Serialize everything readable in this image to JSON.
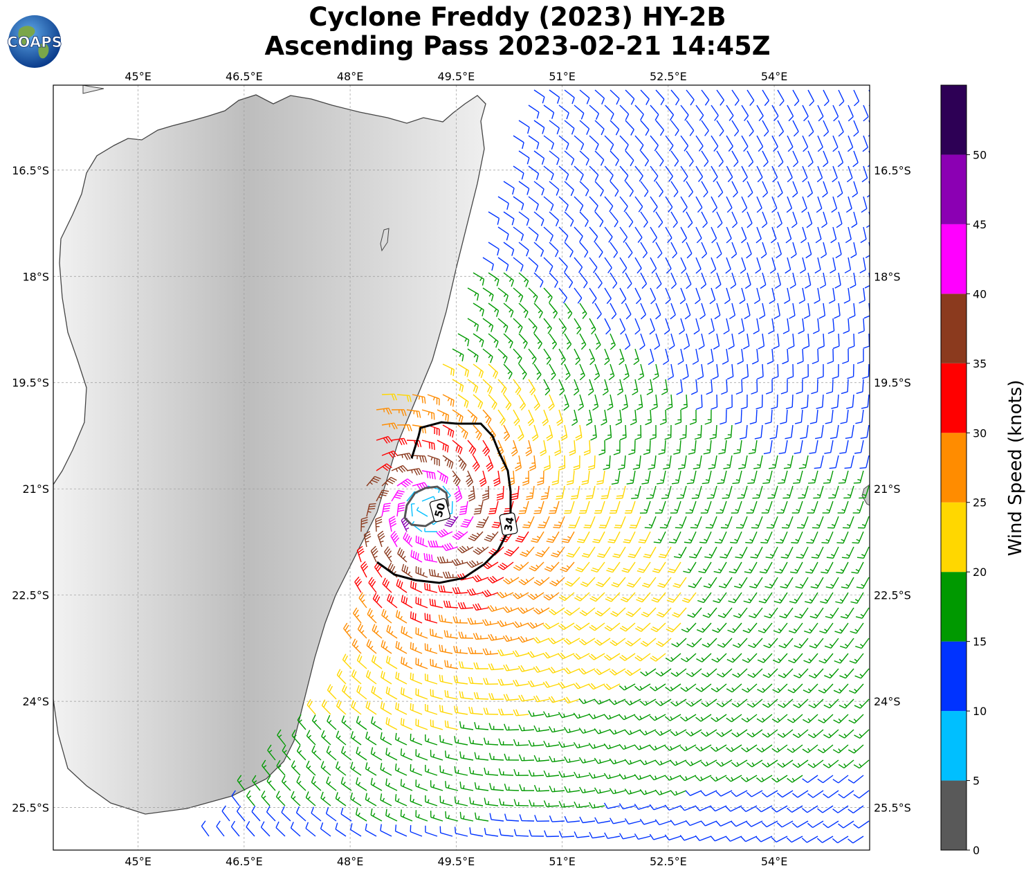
{
  "title": {
    "line1": "Cyclone Freddy (2023) HY-2B",
    "line2": "Ascending Pass 2023-02-21 14:45Z"
  },
  "logo": {
    "text": "COAPS",
    "icon": "globe-logo"
  },
  "map": {
    "lon_range": [
      43.8,
      55.35
    ],
    "lat_range": [
      -26.1,
      -15.3
    ],
    "lon_ticks": [
      "45°E",
      "46.5°E",
      "48°E",
      "49.5°E",
      "51°E",
      "52.5°E",
      "54°E"
    ],
    "lon_tick_values": [
      45,
      46.5,
      48,
      49.5,
      51,
      52.5,
      54
    ],
    "lat_ticks": [
      "16.5°S",
      "18°S",
      "19.5°S",
      "21°S",
      "22.5°S",
      "24°S",
      "25.5°S"
    ],
    "lat_tick_values": [
      -16.5,
      -18,
      -19.5,
      -21,
      -22.5,
      -24,
      -25.5
    ],
    "gridlines": true,
    "land_shading": "grayscale topography",
    "coastline_color": "#444444",
    "contours": [
      {
        "label": "34",
        "units": "knots"
      },
      {
        "label": "50",
        "units": "knots"
      }
    ]
  },
  "colorbar": {
    "title": "Wind Speed (knots)",
    "tick_labels": [
      "0",
      "5",
      "10",
      "15",
      "20",
      "25",
      "30",
      "35",
      "40",
      "45",
      "50"
    ],
    "bins": [
      {
        "range": [
          0,
          5
        ],
        "color": "#595959"
      },
      {
        "range": [
          5,
          10
        ],
        "color": "#00bfff"
      },
      {
        "range": [
          10,
          15
        ],
        "color": "#0033ff"
      },
      {
        "range": [
          15,
          20
        ],
        "color": "#009900"
      },
      {
        "range": [
          20,
          25
        ],
        "color": "#ffd700"
      },
      {
        "range": [
          25,
          30
        ],
        "color": "#ff8c00"
      },
      {
        "range": [
          30,
          35
        ],
        "color": "#ff0000"
      },
      {
        "range": [
          35,
          40
        ],
        "color": "#8b3a1e"
      },
      {
        "range": [
          40,
          45
        ],
        "color": "#ff00ff"
      },
      {
        "range": [
          45,
          50
        ],
        "color": "#8b00b3"
      },
      {
        "range": [
          50,
          55
        ],
        "color": "#2d0055"
      }
    ]
  }
}
